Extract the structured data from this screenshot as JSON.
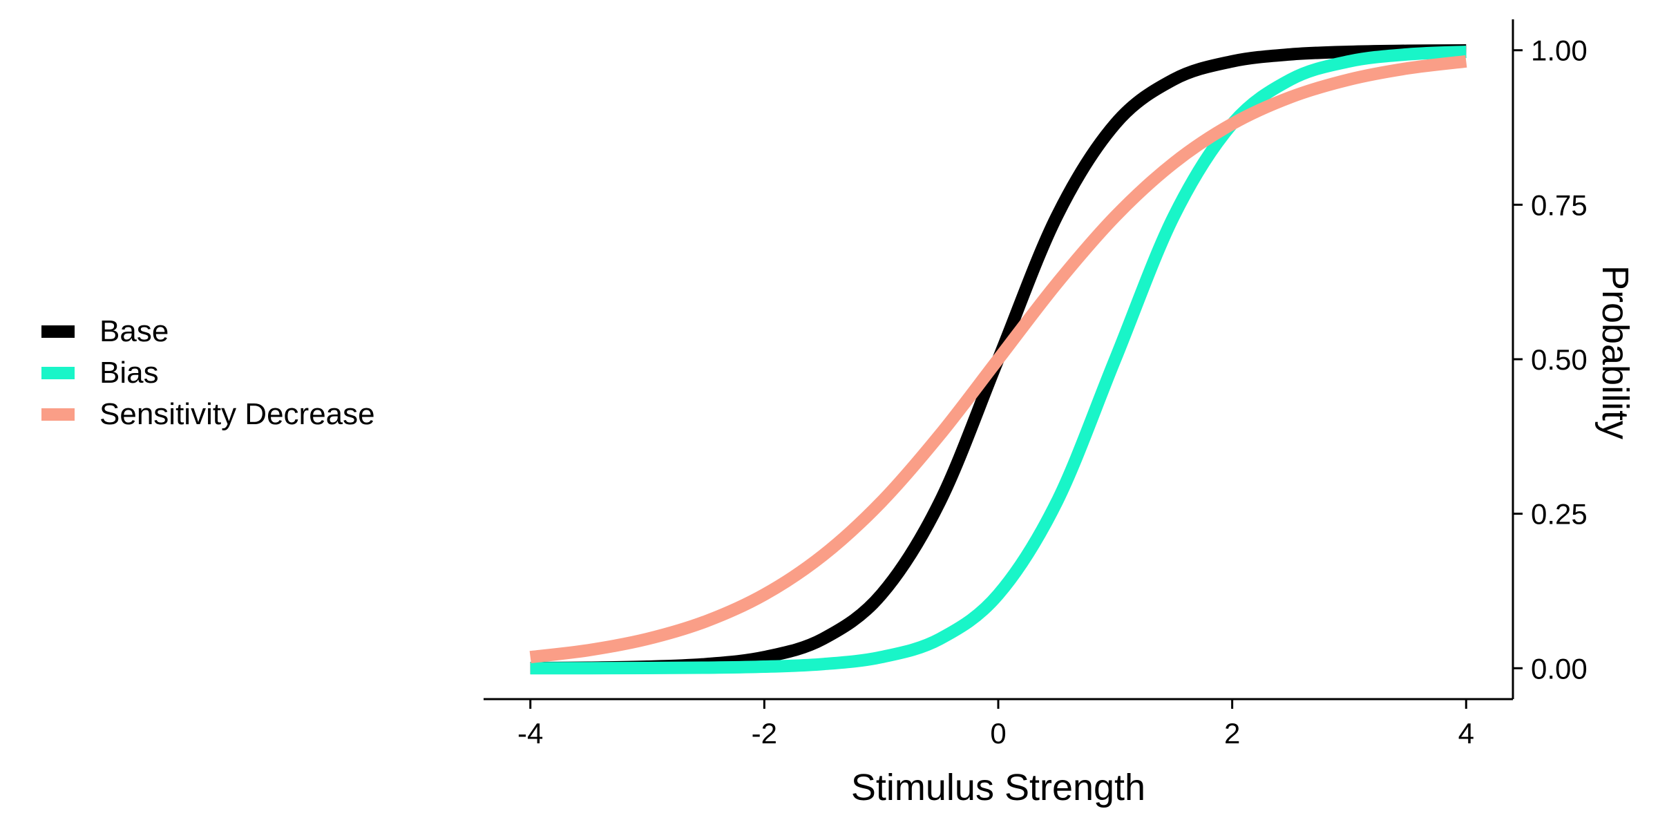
{
  "chart_data": {
    "type": "line",
    "xlabel": "Stimulus Strength",
    "ylabel": "Probability",
    "xlim": [
      -4.4,
      4.4
    ],
    "ylim": [
      -0.05,
      1.05
    ],
    "xticks": [
      -4,
      -2,
      0,
      2,
      4
    ],
    "xtick_labels": [
      "-4",
      "-2",
      "0",
      "2",
      "4"
    ],
    "yticks": [
      0,
      0.25,
      0.5,
      0.75,
      1
    ],
    "ytick_labels": [
      "0.00",
      "0.25",
      "0.50",
      "0.75",
      "1.00"
    ],
    "yaxis_side": "right",
    "grid": false,
    "legend_position": "left",
    "x": [
      -4,
      -3.5,
      -3,
      -2.5,
      -2,
      -1.5,
      -1,
      -0.5,
      0,
      0.5,
      1,
      1.5,
      2,
      2.5,
      3,
      3.5,
      4
    ],
    "series": [
      {
        "name": "Base",
        "color": "#000000",
        "values": [
          0.0003,
          0.0009,
          0.0025,
          0.0067,
          0.018,
          0.0474,
          0.1192,
          0.2689,
          0.5,
          0.7311,
          0.8808,
          0.9526,
          0.982,
          0.9933,
          0.9975,
          0.9991,
          0.9997
        ]
      },
      {
        "name": "Bias",
        "color": "#19F5C8",
        "values": [
          0.0,
          0.0001,
          0.0003,
          0.0009,
          0.0025,
          0.0067,
          0.018,
          0.0474,
          0.1192,
          0.2689,
          0.5,
          0.7311,
          0.8808,
          0.9526,
          0.982,
          0.9933,
          0.9975
        ]
      },
      {
        "name": "Sensitivity Decrease",
        "color": "#FA9E87",
        "values": [
          0.018,
          0.0293,
          0.0474,
          0.0759,
          0.1192,
          0.1824,
          0.2689,
          0.3775,
          0.5,
          0.6225,
          0.7311,
          0.8176,
          0.8808,
          0.9241,
          0.9526,
          0.9707,
          0.982
        ]
      }
    ]
  }
}
